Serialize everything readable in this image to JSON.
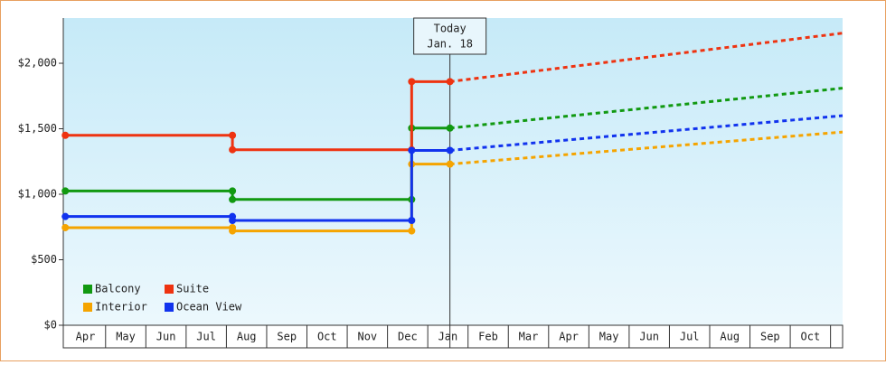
{
  "chart_data": {
    "type": "line",
    "step": true,
    "xlim": [
      -0.05,
      19.3
    ],
    "ylim": [
      0,
      2345
    ],
    "xticks": [
      {
        "value": 0.5,
        "label": "Apr"
      },
      {
        "value": 1.5,
        "label": "May"
      },
      {
        "value": 2.5,
        "label": "Jun"
      },
      {
        "value": 3.5,
        "label": "Jul"
      },
      {
        "value": 4.5,
        "label": "Aug"
      },
      {
        "value": 5.5,
        "label": "Sep"
      },
      {
        "value": 6.5,
        "label": "Oct"
      },
      {
        "value": 7.5,
        "label": "Nov"
      },
      {
        "value": 8.5,
        "label": "Dec"
      },
      {
        "value": 9.5,
        "label": "Jan"
      },
      {
        "value": 10.5,
        "label": "Feb"
      },
      {
        "value": 11.5,
        "label": "Mar"
      },
      {
        "value": 12.5,
        "label": "Apr"
      },
      {
        "value": 13.5,
        "label": "May"
      },
      {
        "value": 14.5,
        "label": "Jun"
      },
      {
        "value": 15.5,
        "label": "Jul"
      },
      {
        "value": 16.5,
        "label": "Aug"
      },
      {
        "value": 17.5,
        "label": "Sep"
      },
      {
        "value": 18.5,
        "label": "Oct"
      }
    ],
    "yticks": [
      {
        "value": 0,
        "label": "$0"
      },
      {
        "value": 500,
        "label": "$500"
      },
      {
        "value": 1000,
        "label": "$1,000"
      },
      {
        "value": 1500,
        "label": "$1,500"
      },
      {
        "value": 2000,
        "label": "$2,000"
      }
    ],
    "annotation": {
      "label": "Today",
      "date": "Jan. 18",
      "x": 9.55
    },
    "series": [
      {
        "name": "Balcony",
        "color": "#119911",
        "x": [
          0,
          4.15,
          4.15,
          8.6,
          8.6,
          9.55,
          19.3
        ],
        "values": [
          1025,
          1025,
          960,
          960,
          1505,
          1505,
          1810
        ]
      },
      {
        "name": "Suite",
        "color": "#ee3311",
        "x": [
          0,
          4.15,
          4.15,
          8.6,
          8.6,
          9.55,
          19.3
        ],
        "values": [
          1450,
          1450,
          1340,
          1340,
          1860,
          1860,
          2230
        ]
      },
      {
        "name": "Interior",
        "color": "#f5a400",
        "x": [
          0,
          4.15,
          4.15,
          8.6,
          8.6,
          9.55,
          19.3
        ],
        "values": [
          745,
          745,
          720,
          720,
          1230,
          1230,
          1475
        ]
      },
      {
        "name": "Ocean View",
        "color": "#1133ee",
        "x": [
          0,
          4.15,
          4.15,
          8.6,
          8.6,
          9.55,
          19.3
        ],
        "values": [
          830,
          830,
          800,
          800,
          1335,
          1335,
          1600
        ]
      }
    ]
  }
}
